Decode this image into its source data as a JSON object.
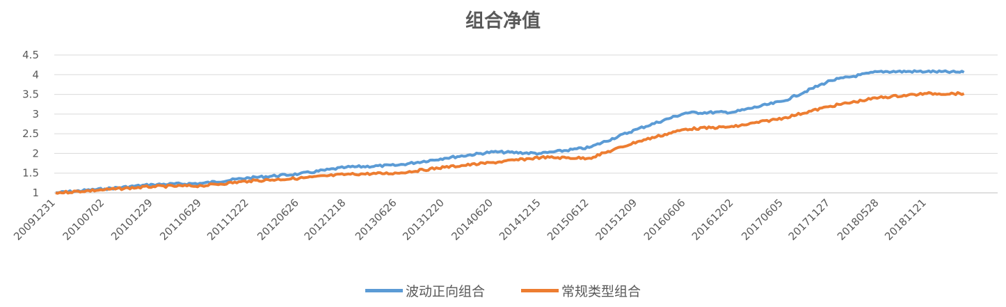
{
  "chart_data": {
    "type": "line",
    "title": "组合净值",
    "ylim": [
      1,
      4.5
    ],
    "yticks": [
      "1",
      "1.5",
      "2",
      "2.5",
      "3",
      "3.5",
      "4",
      "4.5"
    ],
    "x_tick_labels": [
      "20091231",
      "20100702",
      "20101229",
      "20110629",
      "20111222",
      "20120626",
      "20121218",
      "20130626",
      "20131220",
      "20140620",
      "20141215",
      "20150612",
      "20151209",
      "20160606",
      "20161202",
      "20170605",
      "20171127",
      "20180528",
      "20181121"
    ],
    "legend_position": "bottom",
    "grid": true,
    "series": [
      {
        "name": "波动正向组合",
        "color": "#5b9bd5",
        "points": [
          [
            "20091231",
            1.0
          ],
          [
            "20100702",
            1.1
          ],
          [
            "20101229",
            1.21
          ],
          [
            "20110629",
            1.24
          ],
          [
            "20111222",
            1.38
          ],
          [
            "20120626",
            1.48
          ],
          [
            "20121218",
            1.65
          ],
          [
            "20130626",
            1.7
          ],
          [
            "20131220",
            1.88
          ],
          [
            "20140620",
            2.04
          ],
          [
            "20141215",
            2.0
          ],
          [
            "20150612",
            2.15
          ],
          [
            "20151209",
            2.62
          ],
          [
            "20160606",
            3.03
          ],
          [
            "20161202",
            3.05
          ],
          [
            "20170605",
            3.33
          ],
          [
            "20171127",
            3.85
          ],
          [
            "20180528",
            4.08
          ],
          [
            "20181121",
            4.08
          ],
          [
            "20190409",
            4.06
          ]
        ]
      },
      {
        "name": "常规类型组合",
        "color": "#ed7d31",
        "points": [
          [
            "20091231",
            1.0
          ],
          [
            "20100702",
            1.08
          ],
          [
            "20101229",
            1.16
          ],
          [
            "20110629",
            1.18
          ],
          [
            "20111222",
            1.3
          ],
          [
            "20120626",
            1.37
          ],
          [
            "20121218",
            1.47
          ],
          [
            "20130626",
            1.5
          ],
          [
            "20131220",
            1.65
          ],
          [
            "20140620",
            1.77
          ],
          [
            "20141215",
            1.9
          ],
          [
            "20150612",
            1.88
          ],
          [
            "20151209",
            2.3
          ],
          [
            "20160606",
            2.62
          ],
          [
            "20161202",
            2.68
          ],
          [
            "20170605",
            2.9
          ],
          [
            "20171127",
            3.2
          ],
          [
            "20180528",
            3.42
          ],
          [
            "20181121",
            3.52
          ],
          [
            "20190409",
            3.52
          ]
        ]
      }
    ]
  }
}
